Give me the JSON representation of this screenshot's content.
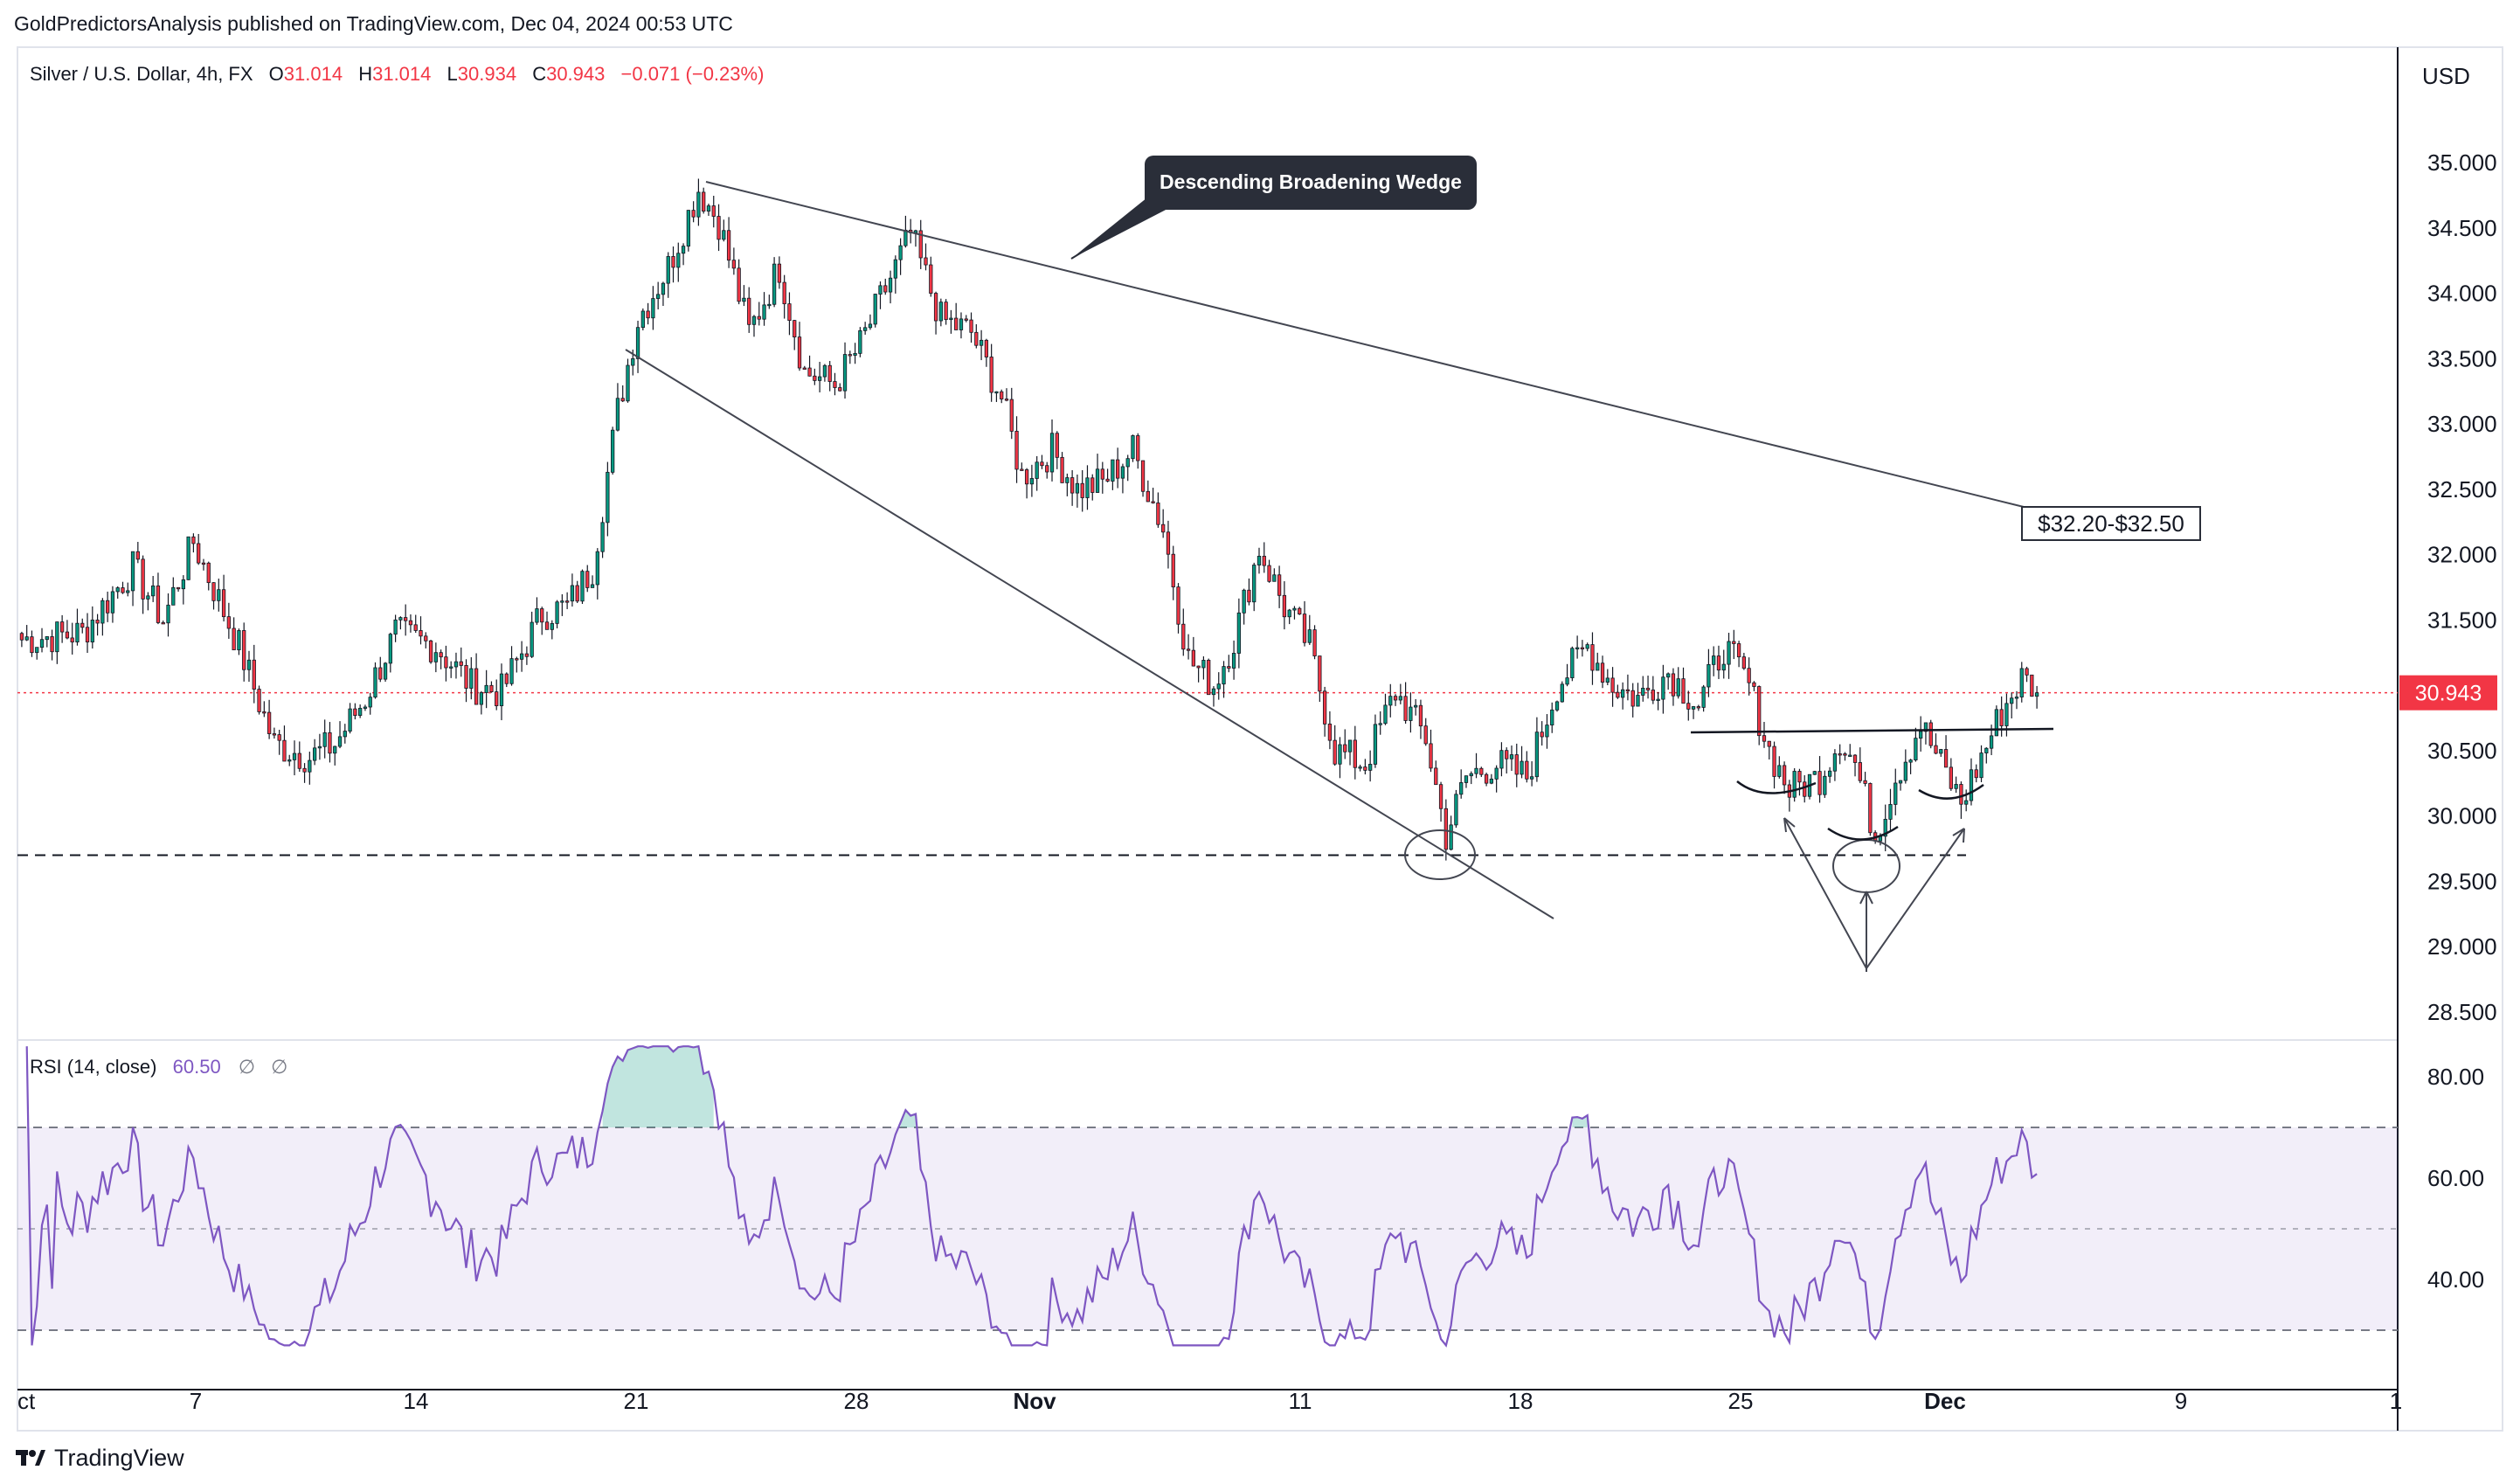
{
  "publisher": {
    "text": "GoldPredictorsAnalysis published on TradingView.com, Dec 04, 2024 00:53 UTC"
  },
  "footer": {
    "brand": "TradingView",
    "logo_icon": "tradingview-logo-icon"
  },
  "chart_data": [
    {
      "type": "candlestick",
      "symbol_label": "Silver / U.S. Dollar, 4h, FX",
      "ohlc": {
        "o_label": "O",
        "o": "31.014",
        "h_label": "H",
        "h": "31.014",
        "l_label": "L",
        "l": "30.934",
        "c_label": "C",
        "c": "30.943",
        "change": "−0.071 (−0.23%)"
      },
      "currency": "USD",
      "y_ticks": [
        "35.000",
        "34.500",
        "34.000",
        "33.500",
        "33.000",
        "32.500",
        "32.000",
        "31.500",
        "31.000",
        "30.500",
        "30.000",
        "29.500",
        "29.000",
        "28.500"
      ],
      "ylim": [
        28.35,
        35.3
      ],
      "last_price": "30.943",
      "x_ticks": [
        "ct",
        "7",
        "14",
        "21",
        "28",
        "Nov",
        "11",
        "18",
        "25",
        "Dec",
        "9",
        "1"
      ],
      "up_color": "#089981",
      "down_color": "#f23645",
      "close_path": [
        [
          0,
          31.35
        ],
        [
          12,
          31.4
        ],
        [
          22,
          31.9
        ],
        [
          28,
          31.5
        ],
        [
          34,
          32.1
        ],
        [
          43,
          31.3
        ],
        [
          50,
          30.55
        ],
        [
          57,
          30.45
        ],
        [
          62,
          30.55
        ],
        [
          68,
          30.9
        ],
        [
          74,
          31.4
        ],
        [
          82,
          31.3
        ],
        [
          89,
          31.0
        ],
        [
          95,
          30.95
        ],
        [
          103,
          31.55
        ],
        [
          108,
          31.6
        ],
        [
          113,
          31.9
        ],
        [
          118,
          33.1
        ],
        [
          122,
          33.8
        ],
        [
          128,
          34.2
        ],
        [
          134,
          34.8
        ],
        [
          138,
          34.55
        ],
        [
          144,
          33.7
        ],
        [
          150,
          34.2
        ],
        [
          155,
          33.4
        ],
        [
          161,
          33.3
        ],
        [
          166,
          33.6
        ],
        [
          170,
          33.95
        ],
        [
          176,
          34.45
        ],
        [
          182,
          33.8
        ],
        [
          188,
          33.7
        ],
        [
          194,
          33.2
        ],
        [
          198,
          32.6
        ],
        [
          204,
          32.8
        ],
        [
          209,
          32.5
        ],
        [
          214,
          32.55
        ],
        [
          220,
          32.8
        ],
        [
          226,
          32.2
        ],
        [
          231,
          31.2
        ],
        [
          236,
          31.0
        ],
        [
          240,
          31.35
        ],
        [
          245,
          32.05
        ],
        [
          250,
          31.6
        ],
        [
          255,
          31.3
        ],
        [
          260,
          30.5
        ],
        [
          266,
          30.4
        ],
        [
          272,
          30.95
        ],
        [
          278,
          30.6
        ],
        [
          282,
          29.85
        ],
        [
          286,
          30.3
        ],
        [
          292,
          30.4
        ],
        [
          298,
          30.3
        ],
        [
          304,
          31.0
        ],
        [
          310,
          31.3
        ],
        [
          315,
          31.0
        ],
        [
          320,
          30.9
        ],
        [
          326,
          31.1
        ],
        [
          332,
          30.85
        ],
        [
          337,
          31.3
        ],
        [
          342,
          31.0
        ],
        [
          346,
          30.5
        ],
        [
          350,
          30.2
        ],
        [
          356,
          30.3
        ],
        [
          360,
          30.6
        ],
        [
          363,
          30.4
        ],
        [
          367,
          29.85
        ],
        [
          371,
          30.3
        ],
        [
          376,
          30.7
        ],
        [
          380,
          30.4
        ],
        [
          384,
          30.1
        ],
        [
          388,
          30.45
        ],
        [
          392,
          30.8
        ],
        [
          396,
          31.05
        ],
        [
          400,
          30.95
        ]
      ],
      "candles_count": 400,
      "annotations": [
        {
          "text": "Descending Broadening Wedge"
        },
        {
          "text": "$32.20-$32.50"
        }
      ]
    },
    {
      "type": "line",
      "indicator_label": "RSI (14, close)",
      "value": "60.50",
      "extra_labels": [
        "∅",
        "∅"
      ],
      "line_color": "#7e57c2",
      "y_ticks": [
        "80.00",
        "60.00",
        "40.00"
      ],
      "ylim": [
        25,
        87
      ],
      "upper_band": 70,
      "lower_band": 30,
      "mid_band": 50
    }
  ]
}
